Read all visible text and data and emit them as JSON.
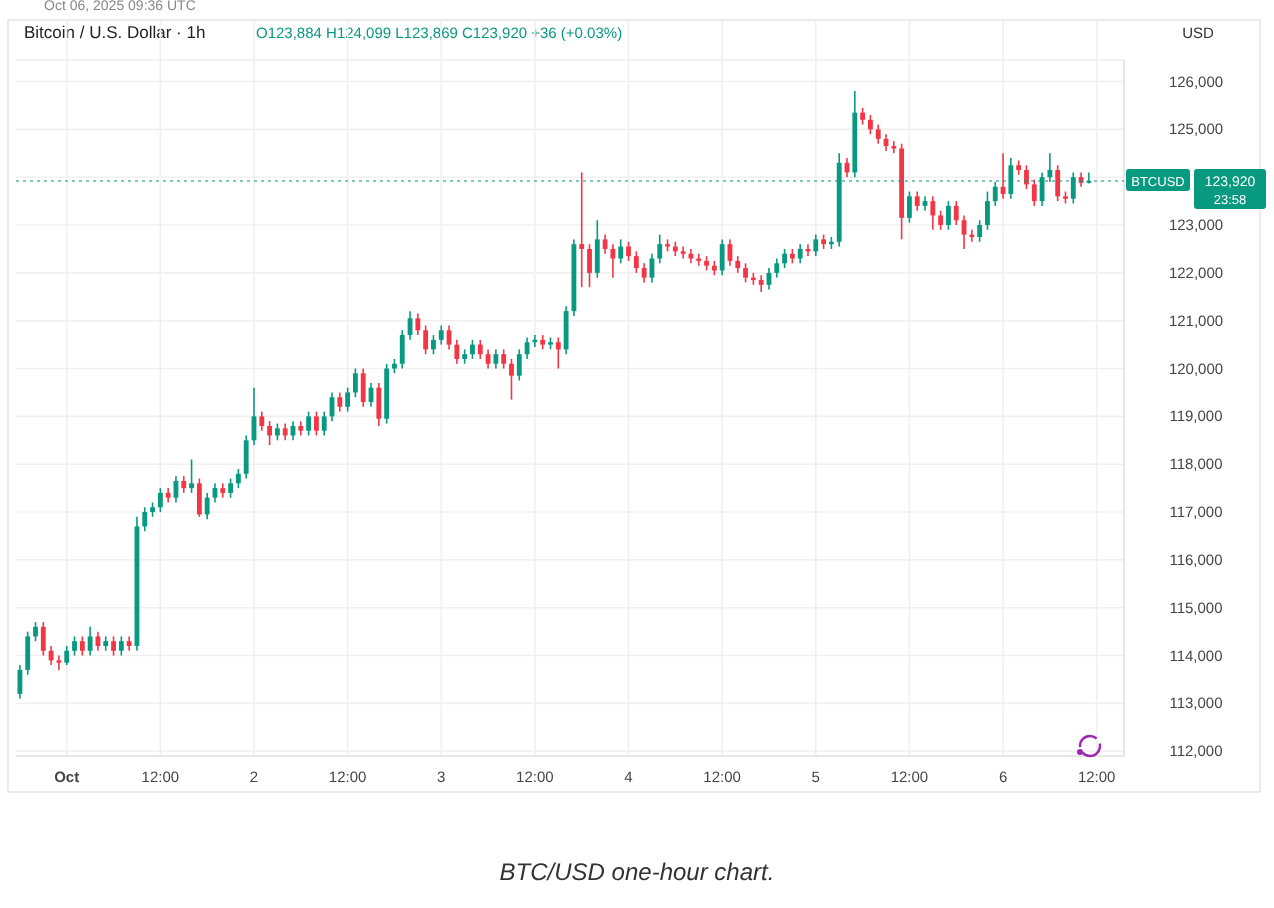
{
  "chart_data": {
    "type": "candlestick",
    "title": "Bitcoin / U.S. Dollar · 1h",
    "subtitle": "O123,884 H124,099 L123,869 C123,920 +36 (+0.03%)",
    "ylabel": "USD",
    "annotations": [
      "Oct 06, 2025 09:36 UTC",
      "123,920",
      "23:58",
      "BTC/USD one-hour chart."
    ],
    "x": [
      "2025-09-30T18:00",
      "2025-09-30T19:00",
      "2025-09-30T20:00",
      "2025-09-30T21:00",
      "2025-09-30T22:00",
      "2025-09-30T23:00",
      "2025-10-01T00:00",
      "2025-10-01T01:00",
      "2025-10-01T02:00",
      "2025-10-01T03:00",
      "2025-10-01T04:00",
      "2025-10-01T05:00",
      "2025-10-01T06:00",
      "2025-10-01T07:00",
      "2025-10-01T08:00",
      "2025-10-01T09:00",
      "2025-10-01T10:00",
      "2025-10-01T11:00",
      "2025-10-01T12:00",
      "2025-10-01T13:00",
      "2025-10-01T14:00",
      "2025-10-01T15:00",
      "2025-10-01T16:00",
      "2025-10-01T17:00",
      "2025-10-01T18:00",
      "2025-10-01T19:00",
      "2025-10-01T20:00",
      "2025-10-01T21:00",
      "2025-10-01T22:00",
      "2025-10-01T23:00",
      "2025-10-02T00:00",
      "2025-10-02T01:00",
      "2025-10-02T02:00",
      "2025-10-02T03:00",
      "2025-10-02T04:00",
      "2025-10-02T05:00",
      "2025-10-02T06:00",
      "2025-10-02T07:00",
      "2025-10-02T08:00",
      "2025-10-02T09:00",
      "2025-10-02T10:00",
      "2025-10-02T11:00",
      "2025-10-02T12:00",
      "2025-10-02T13:00",
      "2025-10-02T14:00",
      "2025-10-02T15:00",
      "2025-10-02T16:00",
      "2025-10-02T17:00",
      "2025-10-02T18:00",
      "2025-10-02T19:00",
      "2025-10-02T20:00",
      "2025-10-02T21:00",
      "2025-10-02T22:00",
      "2025-10-02T23:00",
      "2025-10-03T00:00",
      "2025-10-03T01:00",
      "2025-10-03T02:00",
      "2025-10-03T03:00",
      "2025-10-03T04:00",
      "2025-10-03T05:00",
      "2025-10-03T06:00",
      "2025-10-03T07:00",
      "2025-10-03T08:00",
      "2025-10-03T09:00",
      "2025-10-03T10:00",
      "2025-10-03T11:00",
      "2025-10-03T12:00",
      "2025-10-03T13:00",
      "2025-10-03T14:00",
      "2025-10-03T15:00",
      "2025-10-03T16:00",
      "2025-10-03T17:00",
      "2025-10-03T18:00",
      "2025-10-03T19:00",
      "2025-10-03T20:00",
      "2025-10-03T21:00",
      "2025-10-03T22:00",
      "2025-10-03T23:00",
      "2025-10-04T00:00",
      "2025-10-04T01:00",
      "2025-10-04T02:00",
      "2025-10-04T03:00",
      "2025-10-04T04:00",
      "2025-10-04T05:00",
      "2025-10-04T06:00",
      "2025-10-04T07:00",
      "2025-10-04T08:00",
      "2025-10-04T09:00",
      "2025-10-04T10:00",
      "2025-10-04T11:00",
      "2025-10-04T12:00",
      "2025-10-04T13:00",
      "2025-10-04T14:00",
      "2025-10-04T15:00",
      "2025-10-04T16:00",
      "2025-10-04T17:00",
      "2025-10-04T18:00",
      "2025-10-04T19:00",
      "2025-10-04T20:00",
      "2025-10-04T21:00",
      "2025-10-04T22:00",
      "2025-10-04T23:00",
      "2025-10-05T00:00",
      "2025-10-05T01:00",
      "2025-10-05T02:00",
      "2025-10-05T03:00",
      "2025-10-05T04:00",
      "2025-10-05T05:00",
      "2025-10-05T06:00",
      "2025-10-05T07:00",
      "2025-10-05T08:00",
      "2025-10-05T09:00",
      "2025-10-05T10:00",
      "2025-10-05T11:00",
      "2025-10-05T12:00",
      "2025-10-05T13:00",
      "2025-10-05T14:00",
      "2025-10-05T15:00",
      "2025-10-05T16:00",
      "2025-10-05T17:00",
      "2025-10-05T18:00",
      "2025-10-05T19:00",
      "2025-10-05T20:00",
      "2025-10-05T21:00",
      "2025-10-05T22:00",
      "2025-10-05T23:00",
      "2025-10-06T00:00",
      "2025-10-06T01:00",
      "2025-10-06T02:00",
      "2025-10-06T03:00",
      "2025-10-06T04:00",
      "2025-10-06T05:00",
      "2025-10-06T06:00",
      "2025-10-06T07:00",
      "2025-10-06T08:00",
      "2025-10-06T09:00",
      "2025-10-06T10:00",
      "2025-10-06T11:00"
    ],
    "ohlc": [
      [
        113200,
        113800,
        113100,
        113700
      ],
      [
        113700,
        114500,
        113600,
        114400
      ],
      [
        114400,
        114700,
        114300,
        114600
      ],
      [
        114600,
        114700,
        114000,
        114100
      ],
      [
        114100,
        114200,
        113800,
        113900
      ],
      [
        113900,
        114000,
        113700,
        113850
      ],
      [
        113850,
        114200,
        113800,
        114100
      ],
      [
        114100,
        114400,
        114000,
        114300
      ],
      [
        114300,
        114400,
        114000,
        114100
      ],
      [
        114100,
        114600,
        114000,
        114400
      ],
      [
        114400,
        114500,
        114100,
        114200
      ],
      [
        114200,
        114400,
        114100,
        114300
      ],
      [
        114300,
        114400,
        114000,
        114100
      ],
      [
        114100,
        114400,
        114000,
        114300
      ],
      [
        114300,
        114400,
        114100,
        114200
      ],
      [
        114200,
        116900,
        114100,
        116700
      ],
      [
        116700,
        117100,
        116600,
        117000
      ],
      [
        117000,
        117200,
        116900,
        117100
      ],
      [
        117100,
        117500,
        117000,
        117400
      ],
      [
        117400,
        117500,
        117200,
        117300
      ],
      [
        117300,
        117750,
        117200,
        117650
      ],
      [
        117650,
        117750,
        117400,
        117500
      ],
      [
        117500,
        118100,
        117400,
        117600
      ],
      [
        117600,
        117700,
        116900,
        116950
      ],
      [
        116950,
        117400,
        116850,
        117300
      ],
      [
        117300,
        117600,
        117200,
        117500
      ],
      [
        117500,
        117600,
        117300,
        117400
      ],
      [
        117400,
        117700,
        117300,
        117600
      ],
      [
        117600,
        117900,
        117500,
        117800
      ],
      [
        117800,
        118600,
        117700,
        118500
      ],
      [
        118500,
        119600,
        118400,
        119000
      ],
      [
        119000,
        119100,
        118700,
        118800
      ],
      [
        118800,
        118900,
        118400,
        118600
      ],
      [
        118600,
        118850,
        118500,
        118750
      ],
      [
        118750,
        118850,
        118500,
        118600
      ],
      [
        118600,
        118900,
        118500,
        118800
      ],
      [
        118800,
        118900,
        118600,
        118700
      ],
      [
        118700,
        119100,
        118600,
        119000
      ],
      [
        119000,
        119100,
        118600,
        118700
      ],
      [
        118700,
        119100,
        118600,
        119000
      ],
      [
        119000,
        119500,
        118900,
        119400
      ],
      [
        119400,
        119500,
        119100,
        119200
      ],
      [
        119200,
        119600,
        119100,
        119500
      ],
      [
        119500,
        120000,
        119400,
        119900
      ],
      [
        119900,
        120000,
        119200,
        119300
      ],
      [
        119300,
        119700,
        119200,
        119600
      ],
      [
        119600,
        119700,
        118800,
        118950
      ],
      [
        118950,
        120100,
        118850,
        120000
      ],
      [
        120000,
        120200,
        119900,
        120100
      ],
      [
        120100,
        120800,
        120000,
        120700
      ],
      [
        120700,
        121200,
        120600,
        121050
      ],
      [
        121050,
        121150,
        120700,
        120800
      ],
      [
        120800,
        120900,
        120300,
        120400
      ],
      [
        120400,
        120700,
        120300,
        120600
      ],
      [
        120600,
        120900,
        120500,
        120800
      ],
      [
        120800,
        120900,
        120400,
        120500
      ],
      [
        120500,
        120600,
        120100,
        120200
      ],
      [
        120200,
        120400,
        120100,
        120300
      ],
      [
        120300,
        120600,
        120200,
        120500
      ],
      [
        120500,
        120600,
        120200,
        120300
      ],
      [
        120300,
        120400,
        120000,
        120100
      ],
      [
        120100,
        120400,
        120000,
        120300
      ],
      [
        120300,
        120400,
        120000,
        120100
      ],
      [
        120100,
        120200,
        119350,
        119850
      ],
      [
        119850,
        120400,
        119750,
        120300
      ],
      [
        120300,
        120650,
        120200,
        120550
      ],
      [
        120550,
        120700,
        120450,
        120600
      ],
      [
        120600,
        120700,
        120400,
        120500
      ],
      [
        120500,
        120650,
        120400,
        120550
      ],
      [
        120550,
        120650,
        120000,
        120400
      ],
      [
        120400,
        121300,
        120300,
        121200
      ],
      [
        121200,
        122700,
        121100,
        122600
      ],
      [
        122600,
        124100,
        121700,
        122500
      ],
      [
        122500,
        122600,
        121700,
        122000
      ],
      [
        122000,
        123100,
        121900,
        122700
      ],
      [
        122700,
        122800,
        122400,
        122500
      ],
      [
        122500,
        122600,
        121900,
        122300
      ],
      [
        122300,
        122700,
        122200,
        122550
      ],
      [
        122550,
        122650,
        122250,
        122350
      ],
      [
        122350,
        122450,
        122000,
        122100
      ],
      [
        122100,
        122200,
        121800,
        121900
      ],
      [
        121900,
        122400,
        121800,
        122300
      ],
      [
        122300,
        122800,
        122200,
        122600
      ],
      [
        122600,
        122700,
        122450,
        122550
      ],
      [
        122550,
        122650,
        122350,
        122450
      ],
      [
        122450,
        122550,
        122300,
        122400
      ],
      [
        122400,
        122500,
        122200,
        122300
      ],
      [
        122300,
        122400,
        122150,
        122250
      ],
      [
        122250,
        122350,
        122050,
        122150
      ],
      [
        122150,
        122250,
        121950,
        122050
      ],
      [
        122050,
        122700,
        121950,
        122600
      ],
      [
        122600,
        122700,
        122150,
        122250
      ],
      [
        122250,
        122350,
        122000,
        122100
      ],
      [
        122100,
        122200,
        121800,
        121900
      ],
      [
        121900,
        122000,
        121750,
        121850
      ],
      [
        121850,
        121950,
        121600,
        121750
      ],
      [
        121750,
        122100,
        121650,
        122000
      ],
      [
        122000,
        122300,
        121900,
        122200
      ],
      [
        122200,
        122500,
        122100,
        122400
      ],
      [
        122400,
        122500,
        122200,
        122300
      ],
      [
        122300,
        122600,
        122200,
        122500
      ],
      [
        122500,
        122600,
        122350,
        122450
      ],
      [
        122450,
        122800,
        122350,
        122700
      ],
      [
        122700,
        122800,
        122500,
        122600
      ],
      [
        122600,
        122750,
        122500,
        122650
      ],
      [
        122650,
        124500,
        122550,
        124300
      ],
      [
        124300,
        124400,
        124000,
        124100
      ],
      [
        124100,
        125800,
        124000,
        125350
      ],
      [
        125350,
        125450,
        125100,
        125200
      ],
      [
        125200,
        125300,
        124900,
        125000
      ],
      [
        125000,
        125100,
        124700,
        124800
      ],
      [
        124800,
        124900,
        124550,
        124650
      ],
      [
        124650,
        124750,
        124500,
        124600
      ],
      [
        124600,
        124700,
        122700,
        123150
      ],
      [
        123150,
        123700,
        123050,
        123600
      ],
      [
        123600,
        123700,
        123300,
        123400
      ],
      [
        123400,
        123600,
        123300,
        123500
      ],
      [
        123500,
        123600,
        122900,
        123200
      ],
      [
        123200,
        123300,
        122900,
        123000
      ],
      [
        123000,
        123500,
        122900,
        123400
      ],
      [
        123400,
        123500,
        123000,
        123100
      ],
      [
        123100,
        123200,
        122500,
        122800
      ],
      [
        122800,
        122900,
        122650,
        122750
      ],
      [
        122750,
        123100,
        122650,
        123000
      ],
      [
        123000,
        123700,
        122900,
        123500
      ],
      [
        123500,
        123900,
        123400,
        123800
      ],
      [
        123800,
        124500,
        123550,
        123650
      ],
      [
        123650,
        124400,
        123550,
        124250
      ],
      [
        124250,
        124350,
        124050,
        124150
      ],
      [
        124150,
        124250,
        123750,
        123850
      ],
      [
        123850,
        123950,
        123400,
        123500
      ],
      [
        123500,
        124100,
        123400,
        124000
      ],
      [
        124000,
        124500,
        123900,
        124150
      ],
      [
        124150,
        124250,
        123500,
        123600
      ],
      [
        123600,
        123700,
        123450,
        123550
      ],
      [
        123550,
        124100,
        123450,
        124000
      ],
      [
        124000,
        124100,
        123800,
        123884
      ],
      [
        123884,
        124099,
        123869,
        123920
      ]
    ],
    "xlim": [
      "2025-09-30T17:30",
      "2025-10-06T15:30"
    ],
    "xticks": [
      {
        "value": "2025-10-01T00:00",
        "label": "Oct"
      },
      {
        "value": "2025-10-01T12:00",
        "label": "12:00"
      },
      {
        "value": "2025-10-02T00:00",
        "label": "2"
      },
      {
        "value": "2025-10-02T12:00",
        "label": "12:00"
      },
      {
        "value": "2025-10-03T00:00",
        "label": "3"
      },
      {
        "value": "2025-10-03T12:00",
        "label": "12:00"
      },
      {
        "value": "2025-10-04T00:00",
        "label": "4"
      },
      {
        "value": "2025-10-04T12:00",
        "label": "12:00"
      },
      {
        "value": "2025-10-05T00:00",
        "label": "5"
      },
      {
        "value": "2025-10-05T12:00",
        "label": "12:00"
      },
      {
        "value": "2025-10-06T00:00",
        "label": "6"
      },
      {
        "value": "2025-10-06T12:00",
        "label": "12:00"
      }
    ],
    "ylim": [
      111900,
      126450
    ],
    "yticks": [
      {
        "value": 112000,
        "label": "112,000"
      },
      {
        "value": 113000,
        "label": "113,000"
      },
      {
        "value": 114000,
        "label": "114,000"
      },
      {
        "value": 115000,
        "label": "115,000"
      },
      {
        "value": 116000,
        "label": "116,000"
      },
      {
        "value": 117000,
        "label": "117,000"
      },
      {
        "value": 118000,
        "label": "118,000"
      },
      {
        "value": 119000,
        "label": "119,000"
      },
      {
        "value": 120000,
        "label": "120,000"
      },
      {
        "value": 121000,
        "label": "121,000"
      },
      {
        "value": 122000,
        "label": "122,000"
      },
      {
        "value": 123000,
        "label": "123,000"
      },
      {
        "value": 124000,
        "label": null
      },
      {
        "value": 125000,
        "label": "125,000"
      },
      {
        "value": 126000,
        "label": "126,000"
      }
    ],
    "ref_lines": [
      {
        "axis": "y",
        "value": 123920,
        "label": "BTCUSD",
        "color": "#089981",
        "line_style": "dotted"
      }
    ],
    "grid": true
  }
}
